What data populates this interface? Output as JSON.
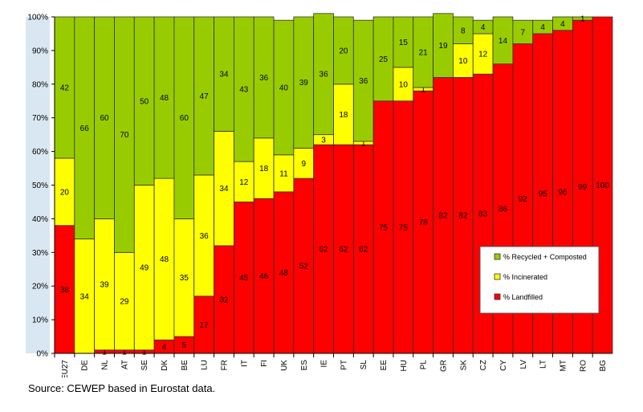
{
  "chart_data": {
    "type": "bar",
    "stacked": true,
    "normalized": true,
    "categories": [
      "EU27",
      "DE",
      "NL",
      "AT",
      "SE",
      "DK",
      "BE",
      "LU",
      "FR",
      "IT",
      "FI",
      "UK",
      "ES",
      "IE",
      "PT",
      "SL",
      "EE",
      "HU",
      "PL",
      "GR",
      "SK",
      "CZ",
      "CY",
      "LV",
      "LT",
      "MT",
      "RO",
      "BG"
    ],
    "series": [
      {
        "name": "% Landfilled",
        "color": "#ff0000",
        "values": [
          38,
          0,
          1,
          1,
          1,
          4,
          5,
          17,
          32,
          45,
          46,
          48,
          52,
          62,
          62,
          62,
          75,
          75,
          78,
          82,
          82,
          83,
          86,
          92,
          95,
          96,
          99,
          100
        ],
        "labels": [
          "38",
          "",
          "1",
          "1",
          "1",
          "4",
          "5",
          "17",
          "32",
          "45",
          "46",
          "48",
          "52",
          "62",
          "62",
          "62",
          "75",
          "75",
          "78",
          "82",
          "82",
          "83",
          "86",
          "92",
          "95",
          "96",
          "99",
          "100"
        ]
      },
      {
        "name": "% Incinerated",
        "color": "#ffff00",
        "values": [
          20,
          34,
          39,
          29,
          49,
          48,
          35,
          36,
          34,
          12,
          18,
          11,
          9,
          3,
          18,
          1,
          0,
          10,
          1,
          0,
          10,
          12,
          0,
          0,
          0,
          0,
          0,
          0
        ],
        "labels": [
          "20",
          "34",
          "39",
          "29",
          "49",
          "48",
          "35",
          "36",
          "34",
          "12",
          "18",
          "11",
          "9",
          "3",
          "18",
          "1",
          "",
          "10",
          "1",
          "",
          "10",
          "12",
          "",
          "",
          "",
          "",
          "",
          ""
        ]
      },
      {
        "name": "% Recycled + Composted",
        "color": "#99cc00",
        "values": [
          42,
          66,
          60,
          70,
          50,
          48,
          60,
          47,
          34,
          43,
          36,
          40,
          39,
          36,
          20,
          36,
          25,
          15,
          21,
          19,
          8,
          4,
          14,
          7,
          4,
          4,
          1,
          0
        ],
        "labels": [
          "42",
          "66",
          "60",
          "70",
          "50",
          "48",
          "60",
          "47",
          "34",
          "43",
          "36",
          "40",
          "39",
          "36",
          "20",
          "36",
          "25",
          "15",
          "21",
          "19",
          "8",
          "4",
          "14",
          "7",
          "4",
          "4",
          "1",
          ""
        ]
      }
    ],
    "yticks": [
      "0%",
      "10%",
      "20%",
      "30%",
      "40%",
      "50%",
      "60%",
      "70%",
      "80%",
      "90%",
      "100%"
    ],
    "ylim": [
      0,
      100
    ],
    "legend": [
      "% Recycled + Composted",
      "% Incinerated",
      "% Landfilled"
    ],
    "legend_position": "right",
    "xlabel": "",
    "ylabel": ""
  },
  "source_text": "Source: CEWEP based in Eurostat data."
}
